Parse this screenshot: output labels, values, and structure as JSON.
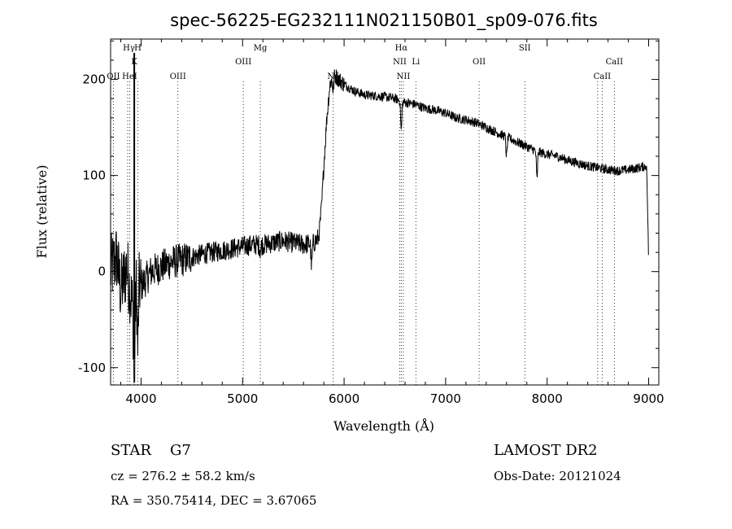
{
  "chart_data": {
    "type": "line",
    "title": "spec-56225-EG232111N021150B01_sp09-076.fits",
    "xlabel": "Wavelength (Å)",
    "ylabel": "Flux (relative)",
    "xlim": [
      3700,
      9100
    ],
    "ylim": [
      -118,
      242
    ],
    "x_ticks": [
      4000,
      5000,
      6000,
      7000,
      8000,
      9000
    ],
    "y_ticks": [
      -100,
      0,
      100,
      200
    ],
    "grid": false,
    "spectrum_anchors": [
      [
        3700,
        0
      ],
      [
        3760,
        15
      ],
      [
        3800,
        -20
      ],
      [
        3860,
        5
      ],
      [
        3920,
        -40
      ],
      [
        3960,
        -10
      ],
      [
        4000,
        -15
      ],
      [
        4100,
        0
      ],
      [
        4200,
        5
      ],
      [
        4300,
        10
      ],
      [
        4400,
        12
      ],
      [
        4500,
        15
      ],
      [
        4600,
        18
      ],
      [
        4700,
        20
      ],
      [
        4800,
        22
      ],
      [
        4900,
        24
      ],
      [
        5000,
        26
      ],
      [
        5100,
        28
      ],
      [
        5200,
        28
      ],
      [
        5300,
        30
      ],
      [
        5400,
        32
      ],
      [
        5500,
        30
      ],
      [
        5600,
        28
      ],
      [
        5700,
        30
      ],
      [
        5750,
        35
      ],
      [
        5780,
        70
      ],
      [
        5800,
        110
      ],
      [
        5830,
        160
      ],
      [
        5860,
        195
      ],
      [
        5900,
        205
      ],
      [
        6000,
        195
      ],
      [
        6100,
        188
      ],
      [
        6200,
        184
      ],
      [
        6300,
        183
      ],
      [
        6400,
        182
      ],
      [
        6500,
        180
      ],
      [
        6600,
        176
      ],
      [
        6700,
        174
      ],
      [
        6800,
        170
      ],
      [
        6900,
        168
      ],
      [
        7000,
        165
      ],
      [
        7100,
        160
      ],
      [
        7200,
        158
      ],
      [
        7300,
        155
      ],
      [
        7400,
        150
      ],
      [
        7500,
        145
      ],
      [
        7600,
        140
      ],
      [
        7700,
        135
      ],
      [
        7800,
        130
      ],
      [
        7900,
        125
      ],
      [
        8000,
        122
      ],
      [
        8100,
        120
      ],
      [
        8200,
        116
      ],
      [
        8300,
        113
      ],
      [
        8400,
        110
      ],
      [
        8500,
        108
      ],
      [
        8600,
        106
      ],
      [
        8700,
        105
      ],
      [
        8800,
        106
      ],
      [
        8900,
        108
      ],
      [
        8980,
        110
      ],
      [
        8995,
        40
      ],
      [
        9000,
        0
      ]
    ],
    "absorption_features": [
      {
        "x": 3933,
        "depth": 90
      },
      {
        "x": 3968,
        "depth": 70
      },
      {
        "x": 5175,
        "depth": 6
      },
      {
        "x": 5680,
        "depth": 25
      },
      {
        "x": 5893,
        "depth": 15
      },
      {
        "x": 6563,
        "depth": 30
      },
      {
        "x": 7600,
        "depth": 20
      },
      {
        "x": 7900,
        "depth": 28
      }
    ],
    "spectral_lines": [
      {
        "label": "OII",
        "x": 3727,
        "row": 3
      },
      {
        "label": "Hγ",
        "x": 3880,
        "row": 1
      },
      {
        "label": "HeI",
        "x": 3888,
        "row": 3
      },
      {
        "label": "H",
        "x": 3968,
        "row": 1
      },
      {
        "label": "K",
        "x": 3933,
        "row": 2
      },
      {
        "label": "OIII",
        "x": 4363,
        "row": 3
      },
      {
        "label": "OIII",
        "x": 5007,
        "row": 2
      },
      {
        "label": "Mg",
        "x": 5175,
        "row": 1
      },
      {
        "label": "Na",
        "x": 5893,
        "row": 3
      },
      {
        "label": "Hα",
        "x": 6563,
        "row": 1
      },
      {
        "label": "NII",
        "x": 6548,
        "row": 2
      },
      {
        "label": "NII",
        "x": 6584,
        "row": 3
      },
      {
        "label": "Li",
        "x": 6707,
        "row": 2
      },
      {
        "label": "OII",
        "x": 7330,
        "row": 2
      },
      {
        "label": "SII",
        "x": 7780,
        "row": 1
      },
      {
        "label": "CaII",
        "x": 8662,
        "row": 2
      },
      {
        "label": "CaII",
        "x": 8542,
        "row": 3
      }
    ],
    "line_markers_x": [
      3727,
      3868,
      3889,
      3933,
      3968,
      4363,
      5007,
      5175,
      5893,
      6548,
      6563,
      6584,
      6707,
      7330,
      7780,
      8498,
      8542,
      8662
    ]
  },
  "info": {
    "object_class": "STAR",
    "subclass": "G7",
    "cz": "cz = 276.2 ± 58.2 km/s",
    "coords": "RA = 350.75414, DEC =   3.67065",
    "survey": "LAMOST DR2",
    "obs_date": "Obs-Date: 20121024"
  }
}
